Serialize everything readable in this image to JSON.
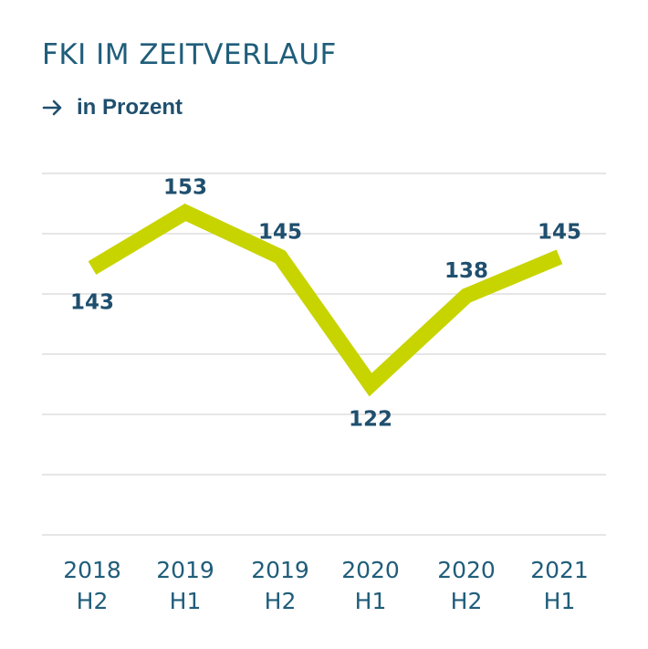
{
  "colors": {
    "title": "#1f5d7a",
    "label": "#1f4f6e",
    "line": "#c8d400",
    "grid": "#e6e6e6"
  },
  "icons": {
    "subtitle_icon": "arrow-right-icon"
  },
  "chart_data": {
    "type": "line",
    "title": "FKI IM ZEITVERLAUF",
    "subtitle": "in Prozent",
    "xlabel": "",
    "ylabel": "",
    "categories": [
      [
        "2018",
        "H2"
      ],
      [
        "2019",
        "H1"
      ],
      [
        "2019",
        "H2"
      ],
      [
        "2020",
        "H1"
      ],
      [
        "2020",
        "H2"
      ],
      [
        "2021",
        "H1"
      ]
    ],
    "series": [
      {
        "values": [
          143,
          153,
          145,
          122,
          138,
          145
        ],
        "data_labels": [
          "143",
          "153",
          "145",
          "122",
          "138",
          "145"
        ],
        "label_position": [
          "below",
          "above",
          "above",
          "below",
          "above",
          "above"
        ]
      }
    ],
    "ylim": [
      95,
      160
    ],
    "grid": true,
    "legend": "none"
  }
}
